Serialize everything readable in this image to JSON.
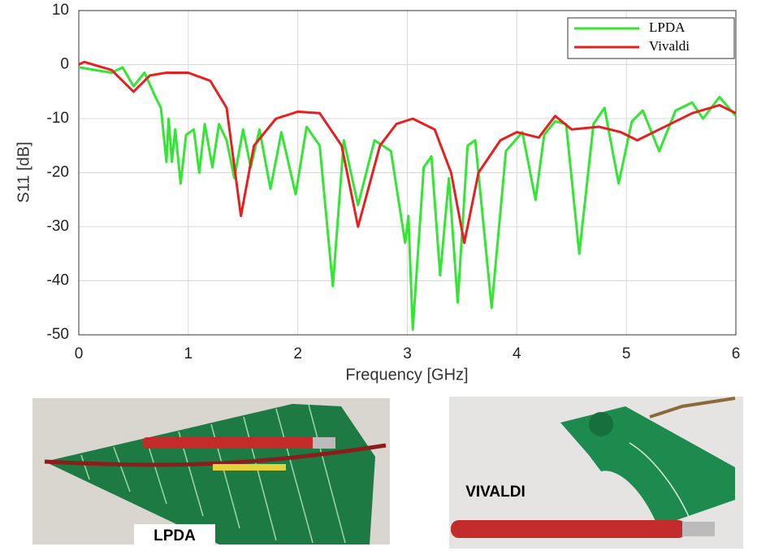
{
  "chart_data": {
    "type": "line",
    "xlabel": "Frequency [GHz]",
    "ylabel": "S11 [dB]",
    "xlim": [
      0,
      6
    ],
    "ylim": [
      -50,
      10
    ],
    "xticks": [
      0,
      1,
      2,
      3,
      4,
      5,
      6
    ],
    "yticks": [
      -50,
      -40,
      -30,
      -20,
      -10,
      0,
      10
    ],
    "grid": true,
    "legend": "upper right",
    "series": [
      {
        "name": "LPDA",
        "color": "#33e633",
        "x": [
          0,
          0.3,
          0.4,
          0.5,
          0.6,
          0.7,
          0.75,
          0.8,
          0.82,
          0.85,
          0.88,
          0.93,
          0.98,
          1.05,
          1.1,
          1.15,
          1.22,
          1.28,
          1.35,
          1.42,
          1.5,
          1.57,
          1.65,
          1.75,
          1.85,
          1.98,
          2.08,
          2.2,
          2.32,
          2.42,
          2.55,
          2.7,
          2.85,
          2.98,
          3.01,
          3.05,
          3.15,
          3.22,
          3.3,
          3.38,
          3.46,
          3.55,
          3.62,
          3.77,
          3.9,
          4.05,
          4.17,
          4.25,
          4.35,
          4.45,
          4.57,
          4.7,
          4.8,
          4.93,
          5.05,
          5.15,
          5.3,
          5.45,
          5.6,
          5.7,
          5.85,
          6
        ],
        "values": [
          -0.5,
          -1.5,
          -0.5,
          -4,
          -1.5,
          -6,
          -8,
          -18,
          -10,
          -18,
          -12,
          -22,
          -13,
          -12,
          -20,
          -11,
          -19,
          -11,
          -14,
          -21,
          -12,
          -19,
          -12,
          -23,
          -12.5,
          -24,
          -11.5,
          -15,
          -41,
          -14,
          -26,
          -14,
          -16,
          -33,
          -28,
          -49,
          -19,
          -17,
          -39,
          -21,
          -44,
          -15,
          -14,
          -45,
          -16,
          -12.5,
          -25,
          -13,
          -10.5,
          -11,
          -35,
          -11,
          -8,
          -22,
          -10.5,
          -8.5,
          -16,
          -8.5,
          -7,
          -10,
          -6,
          -9.5
        ]
      },
      {
        "name": "Vivaldi",
        "color": "#e62020",
        "x": [
          0,
          0.05,
          0.3,
          0.5,
          0.65,
          0.8,
          1.0,
          1.2,
          1.35,
          1.48,
          1.6,
          1.8,
          2.0,
          2.2,
          2.4,
          2.55,
          2.75,
          2.9,
          3.05,
          3.25,
          3.4,
          3.52,
          3.65,
          3.85,
          4.0,
          4.2,
          4.35,
          4.5,
          4.75,
          4.95,
          5.1,
          5.3,
          5.6,
          5.85,
          6
        ],
        "values": [
          0,
          0.5,
          -1,
          -5,
          -2,
          -1.5,
          -1.5,
          -3,
          -8,
          -28,
          -15,
          -10,
          -8.7,
          -9,
          -15,
          -30,
          -15,
          -11,
          -10,
          -12,
          -20,
          -33,
          -20,
          -14,
          -12.5,
          -13.5,
          -9.5,
          -12,
          -11.5,
          -12.5,
          -14,
          -12,
          -9,
          -7.5,
          -9
        ]
      }
    ]
  },
  "photos": [
    {
      "label": "LPDA"
    },
    {
      "label": "VIVALDI"
    }
  ]
}
